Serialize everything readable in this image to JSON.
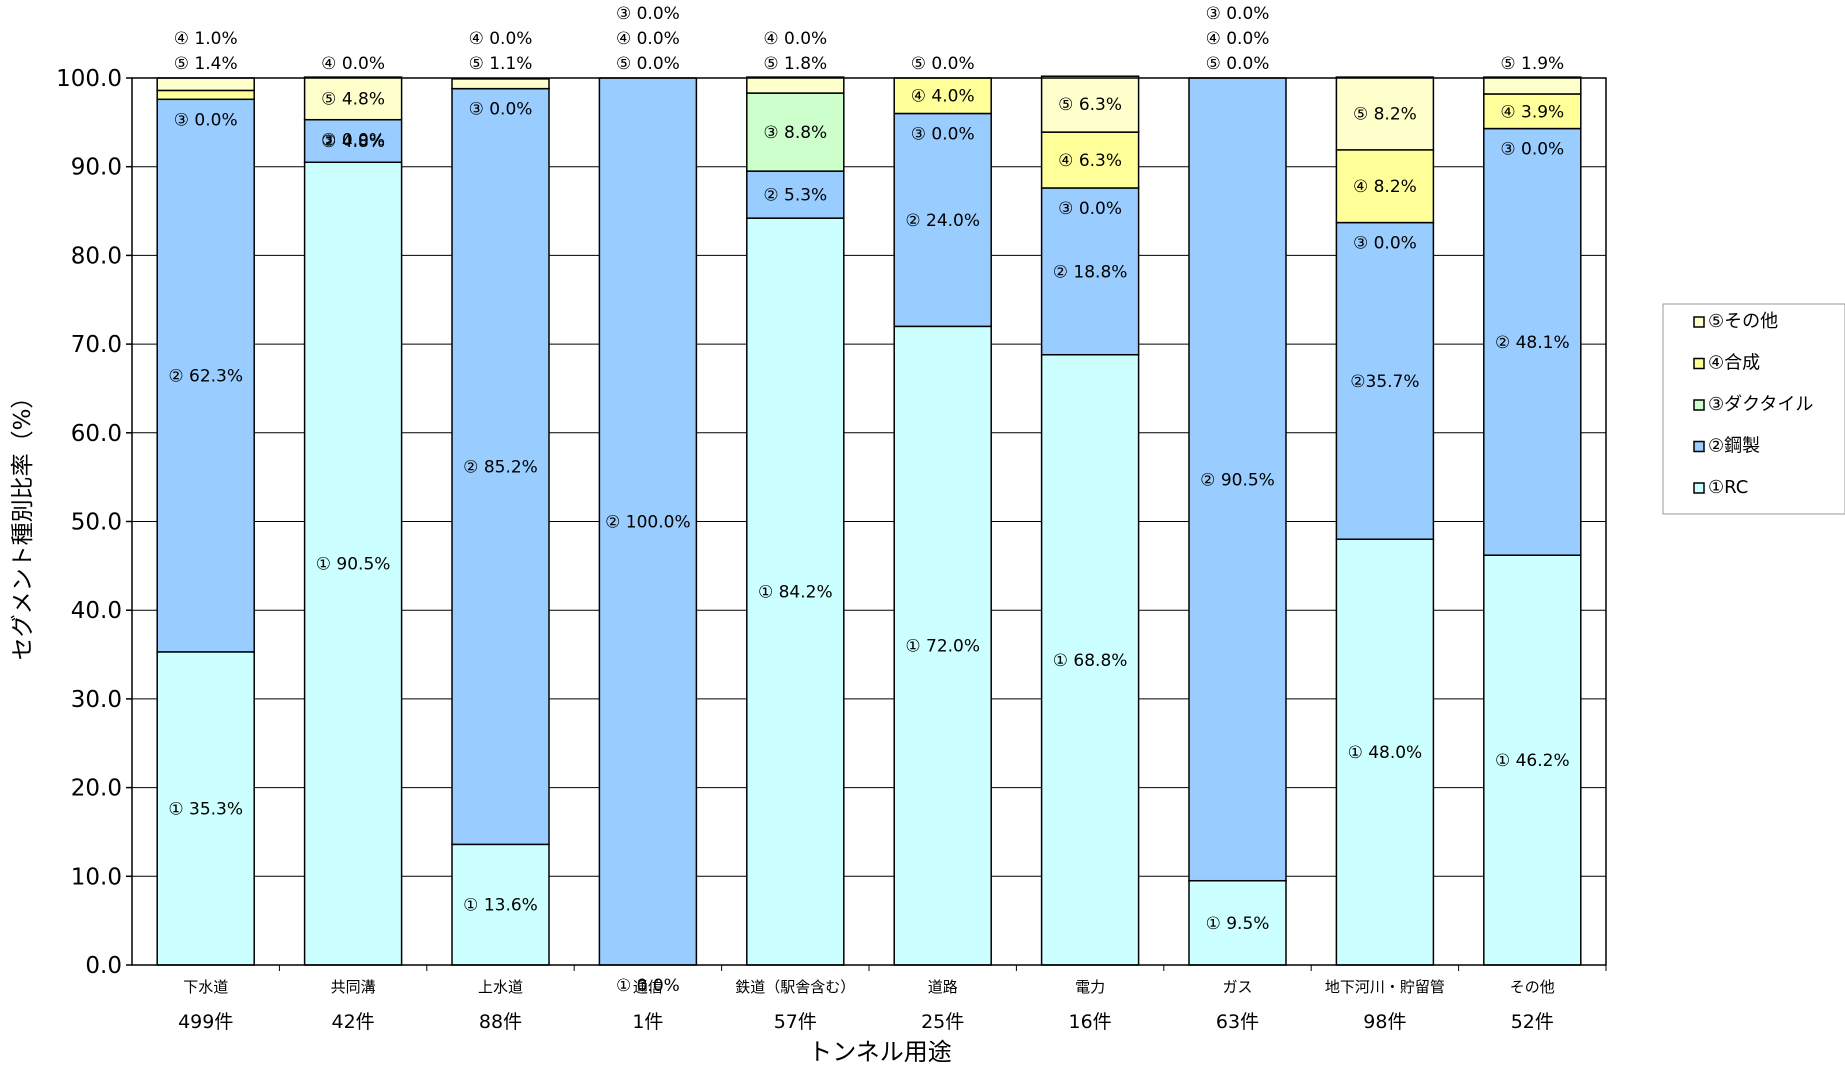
{
  "chart_data": {
    "type": "bar",
    "stacked": true,
    "ylabel": "セグメント種別比率（%）",
    "xlabel": "トンネル用途",
    "ylim": [
      0,
      100
    ],
    "yticks": [
      "0.0",
      "10.0",
      "20.0",
      "30.0",
      "40.0",
      "50.0",
      "60.0",
      "70.0",
      "80.0",
      "90.0",
      "100.0"
    ],
    "grid": true,
    "legend_position": "right",
    "categories": [
      "下水道",
      "共同溝",
      "上水道",
      "通信",
      "鉄道（駅舎含む）",
      "道路",
      "電力",
      "ガス",
      "地下河川・貯留管",
      "その他"
    ],
    "counts": [
      "499件",
      "42件",
      "88件",
      "1件",
      "57件",
      "25件",
      "16件",
      "63件",
      "98件",
      "52件"
    ],
    "series": [
      {
        "name": "①RC",
        "color": "#CCFFFF",
        "values": [
          35.3,
          90.5,
          13.6,
          0.0,
          84.2,
          72.0,
          68.8,
          9.5,
          48.0,
          46.2
        ],
        "labels": [
          "① 35.3%",
          "① 90.5%",
          "① 13.6%",
          "① 0.0%",
          "① 84.2%",
          "① 72.0%",
          "① 68.8%",
          "① 9.5%",
          "① 48.0%",
          "① 46.2%"
        ]
      },
      {
        "name": "②鋼製",
        "color": "#99CCFF",
        "values": [
          62.3,
          4.8,
          85.2,
          100.0,
          5.3,
          24.0,
          18.8,
          90.5,
          35.7,
          48.1
        ],
        "labels": [
          "② 62.3%",
          "② 4.8%",
          "② 85.2%",
          "② 100.0%",
          "② 5.3%",
          "② 24.0%",
          "② 18.8%",
          "② 90.5%",
          "②35.7%",
          "② 48.1%"
        ]
      },
      {
        "name": "③ダクタイル",
        "color": "#CCFFCC",
        "values": [
          0.0,
          0.0,
          0.0,
          0.0,
          8.8,
          0.0,
          0.0,
          0.0,
          0.0,
          0.0
        ],
        "labels": [
          "③ 0.0%",
          "③ 0.0%",
          "③ 0.0%",
          "③ 0.0%",
          "③ 8.8%",
          "③ 0.0%",
          "③ 0.0%",
          "③ 0.0%",
          "③ 0.0%",
          "③ 0.0%"
        ]
      },
      {
        "name": "④合成",
        "color": "#FFFF99",
        "values": [
          1.0,
          0.0,
          0.0,
          0.0,
          0.0,
          4.0,
          6.3,
          0.0,
          8.2,
          3.9
        ],
        "labels": [
          "④ 1.0%",
          "④ 0.0%",
          "④ 0.0%",
          "④ 0.0%",
          "④ 0.0%",
          "④ 4.0%",
          "④ 6.3%",
          "④ 0.0%",
          "④ 8.2%",
          "④ 3.9%"
        ]
      },
      {
        "name": "⑤その他",
        "color": "#FFFFCC",
        "values": [
          1.4,
          4.8,
          1.1,
          0.0,
          1.8,
          0.0,
          6.3,
          0.0,
          8.2,
          1.9
        ],
        "labels": [
          "⑤ 1.4%",
          "⑤ 4.8%",
          "⑤ 1.1%",
          "⑤ 0.0%",
          "⑤ 1.8%",
          "⑤ 0.0%",
          "⑤ 6.3%",
          "⑤ 0.0%",
          "⑤ 8.2%",
          "⑤ 1.9%"
        ]
      }
    ]
  }
}
